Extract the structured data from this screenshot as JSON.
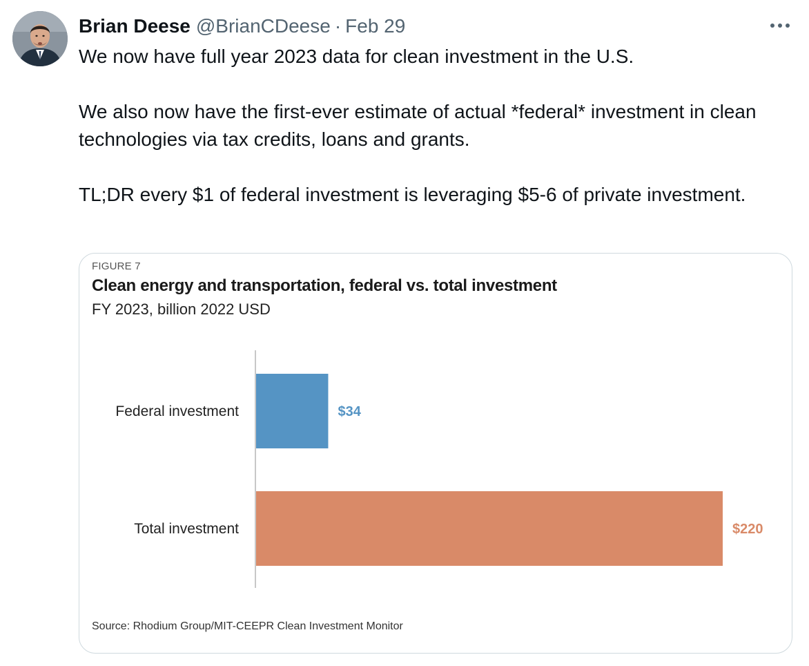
{
  "tweet": {
    "author_name": "Brian Deese",
    "handle": "@BrianCDeese",
    "separator": "·",
    "date": "Feb 29",
    "more_icon": "more-horizontal-icon",
    "paragraphs": [
      "We now have full year 2023 data for clean investment in the U.S.",
      "We also now have the first-ever estimate of actual *federal* investment in clean technologies via tax credits, loans and grants.",
      "TL;DR every $1 of federal investment is leveraging $5-6 of private investment."
    ]
  },
  "figure": {
    "label": "FIGURE 7",
    "source": "Source: Rhodium Group/MIT-CEEPR Clean Investment Monitor"
  },
  "chart_data": {
    "type": "bar",
    "orientation": "horizontal",
    "title": "Clean energy and transportation, federal vs. total investment",
    "subtitle": "FY 2023, billion 2022 USD",
    "categories": [
      "Federal investment",
      "Total investment"
    ],
    "values": [
      34,
      220
    ],
    "value_labels": [
      "$34",
      "$220"
    ],
    "colors": [
      "#5594c4",
      "#d98a68"
    ],
    "xlim": [
      0,
      220
    ],
    "grid": false,
    "legend": "none"
  }
}
